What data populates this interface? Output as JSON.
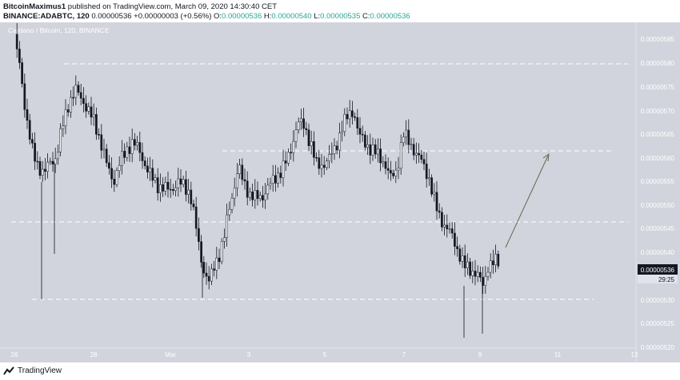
{
  "header": {
    "author": "BitcoinMaximus1",
    "published_text": "published on TradingView.com, March 09, 2020 14:30:40 CET",
    "symbol": "BINANCE:ADABTC, 120",
    "change_value": "0.00000536",
    "change": "+0.00000003 (+0.56%)",
    "o_label": "O:",
    "o_value": "0.00000536",
    "h_label": "H:",
    "h_value": "0.00000540",
    "l_label": "L:",
    "l_value": "0.00000535",
    "c_label": "C:",
    "c_value": "0.00000536"
  },
  "chart": {
    "watermark": "Cardano / Bitcoin, 120, BINANCE",
    "price_ticks": [
      "0.00000585",
      "0.00000580",
      "0.00000575",
      "0.00000570",
      "0.00000565",
      "0.00000560",
      "0.00000555",
      "0.00000550",
      "0.00000545",
      "0.00000540",
      "0.00000530",
      "0.00000525",
      "0.00000520"
    ],
    "current_price_label": "0.00000536",
    "countdown_label": "29:25",
    "time_ticks": [
      "26",
      "28",
      "Mar",
      "3",
      "5",
      "7",
      "9",
      "11",
      "13"
    ],
    "colors": {
      "background": "#d1d4dc",
      "candle": "#131722",
      "hline": "#ffffff",
      "arrow": "#5b6b4f",
      "axis_text": "#ffffff"
    }
  },
  "footer": {
    "brand": "TradingView",
    "logo_icon": "tradingview-logo-icon"
  }
}
